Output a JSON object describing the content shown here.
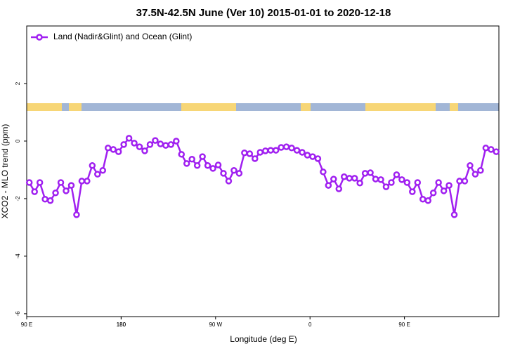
{
  "chart_data": {
    "type": "line",
    "title": "37.5N-42.5N June (Ver 10)   2015-01-01 to 2020-12-18",
    "x_label": "Longitude (deg E)",
    "y_label": "XCO2 - MLO trend (ppm)",
    "x": [
      92.5,
      97.5,
      102.5,
      107.5,
      112.5,
      117.5,
      122.5,
      127.5,
      132.5,
      137.5,
      142.5,
      147.5,
      152.5,
      157.5,
      162.5,
      167.5,
      172.5,
      177.5,
      182.5,
      187.5,
      192.5,
      197.5,
      202.5,
      207.5,
      212.5,
      217.5,
      222.5,
      227.5,
      232.5,
      237.5,
      242.5,
      247.5,
      252.5,
      257.5,
      262.5,
      267.5,
      272.5,
      277.5,
      282.5,
      287.5,
      292.5,
      297.5,
      302.5,
      307.5,
      312.5,
      317.5,
      322.5,
      327.5,
      332.5,
      337.5,
      342.5,
      347.5,
      352.5,
      357.5,
      362.5,
      367.5,
      372.5,
      377.5,
      382.5,
      387.5,
      392.5,
      397.5,
      402.5,
      407.5,
      412.5,
      417.5,
      422.5,
      427.5,
      432.5,
      437.5,
      442.5,
      447.5,
      452.5,
      457.5,
      462.5,
      467.5,
      472.5,
      477.5,
      482.5,
      487.5,
      492.5,
      497.5,
      502.5,
      507.5,
      512.5,
      517.5,
      522.5,
      527.5,
      532.5,
      537.5
    ],
    "series": [
      {
        "name": "Land (Nadir&Glint) and Ocean (Glint)",
        "color": "#a020f0",
        "values": [
          -1.44,
          -1.76,
          -1.44,
          -2.02,
          -2.07,
          -1.8,
          -1.44,
          -1.73,
          -1.54,
          -2.56,
          -1.39,
          -1.39,
          -0.85,
          -1.15,
          -1.02,
          -0.24,
          -0.29,
          -0.37,
          -0.12,
          0.1,
          -0.07,
          -0.2,
          -0.34,
          -0.12,
          0.02,
          -0.1,
          -0.15,
          -0.12,
          0.0,
          -0.46,
          -0.78,
          -0.63,
          -0.85,
          -0.54,
          -0.85,
          -0.95,
          -0.83,
          -1.12,
          -1.39,
          -1.02,
          -1.12,
          -0.41,
          -0.44,
          -0.61,
          -0.39,
          -0.34,
          -0.32,
          -0.32,
          -0.22,
          -0.2,
          -0.24,
          -0.32,
          -0.39,
          -0.49,
          -0.54,
          -0.61,
          -1.07,
          -1.54,
          -1.32,
          -1.66,
          -1.24,
          -1.29,
          -1.29,
          -1.46,
          -1.12,
          -1.1,
          -1.32,
          -1.34,
          -1.59,
          -1.44,
          -1.17,
          -1.34,
          -1.44,
          -1.76,
          -1.44,
          -2.02,
          -2.07,
          -1.8,
          -1.44,
          -1.73,
          -1.54,
          -2.56,
          -1.39,
          -1.39,
          -0.85,
          -1.15,
          -1.02,
          -0.24,
          -0.29,
          -0.37
        ]
      }
    ],
    "xlim": [
      90,
      540
    ],
    "xticks": [
      {
        "value": 90,
        "label": "90 E"
      },
      180,
      {
        "value": 270,
        "label": "90 W"
      },
      {
        "value": 360,
        "label": "0"
      },
      {
        "value": 450,
        "label": "90 E"
      },
      180
    ],
    "ylim": [
      -6.1,
      4.0
    ],
    "yticks": [
      -6,
      -4,
      -2,
      0,
      2
    ],
    "legend": "top-left"
  }
}
